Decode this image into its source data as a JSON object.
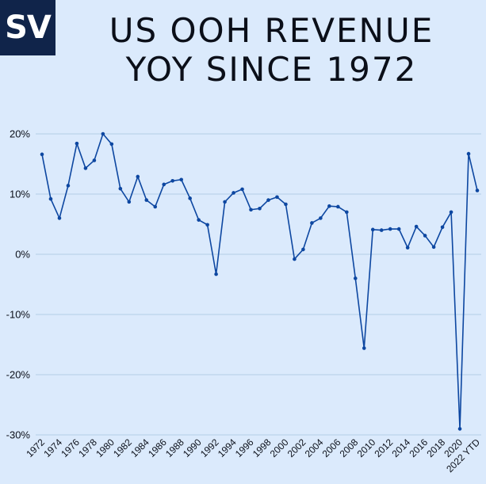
{
  "logo": {
    "text": "SV"
  },
  "title": {
    "line1": "US OOH REVENUE",
    "line2": "YOY SINCE 1972"
  },
  "colors": {
    "background": "#dbeafc",
    "logo_bg": "#10244a",
    "line": "#0d47a1",
    "grid": "#b3cfe6",
    "text": "#0b0f19"
  },
  "chart_data": {
    "type": "line",
    "title": "US OOH REVENUE YOY SINCE 1972",
    "xlabel": "",
    "ylabel": "",
    "ylim": [
      -30,
      20
    ],
    "yticks": [
      20,
      10,
      0,
      -10,
      -20,
      -30
    ],
    "ytick_labels": [
      "20%",
      "10%",
      "0%",
      "-10%",
      "-20%",
      "-30%"
    ],
    "grid": true,
    "legend": "none",
    "categories": [
      "1972",
      "1973",
      "1974",
      "1975",
      "1976",
      "1977",
      "1978",
      "1979",
      "1980",
      "1981",
      "1982",
      "1983",
      "1984",
      "1985",
      "1986",
      "1987",
      "1988",
      "1989",
      "1990",
      "1991",
      "1992",
      "1993",
      "1994",
      "1995",
      "1996",
      "1997",
      "1998",
      "1999",
      "2000",
      "2001",
      "2002",
      "2003",
      "2004",
      "2005",
      "2006",
      "2007",
      "2008",
      "2009",
      "2010",
      "2011",
      "2012",
      "2013",
      "2014",
      "2015",
      "2016",
      "2017",
      "2018",
      "2019",
      "2020",
      "2021",
      "2022 YTD"
    ],
    "xtick_labels_shown": [
      "1972",
      "1974",
      "1976",
      "1978",
      "1980",
      "1982",
      "1984",
      "1986",
      "1988",
      "1990",
      "1992",
      "1994",
      "1996",
      "1998",
      "2000",
      "2002",
      "2004",
      "2006",
      "2008",
      "2010",
      "2012",
      "2014",
      "2016",
      "2018",
      "2020",
      "2022 YTD"
    ],
    "series": [
      {
        "name": "YoY revenue growth",
        "values": [
          16.6,
          9.2,
          6.0,
          11.4,
          18.4,
          14.3,
          15.6,
          20.0,
          18.3,
          10.9,
          8.7,
          12.9,
          9.0,
          7.9,
          11.6,
          12.2,
          12.4,
          9.3,
          5.7,
          4.9,
          -3.3,
          8.7,
          10.2,
          10.8,
          7.4,
          7.6,
          9.0,
          9.5,
          8.3,
          -0.8,
          0.8,
          5.2,
          6.0,
          8.0,
          7.9,
          7.0,
          -4.0,
          -15.6,
          4.1,
          4.0,
          4.2,
          4.2,
          1.1,
          4.6,
          3.1,
          1.2,
          4.5,
          7.0,
          -29.0,
          16.7,
          10.6
        ]
      }
    ]
  }
}
